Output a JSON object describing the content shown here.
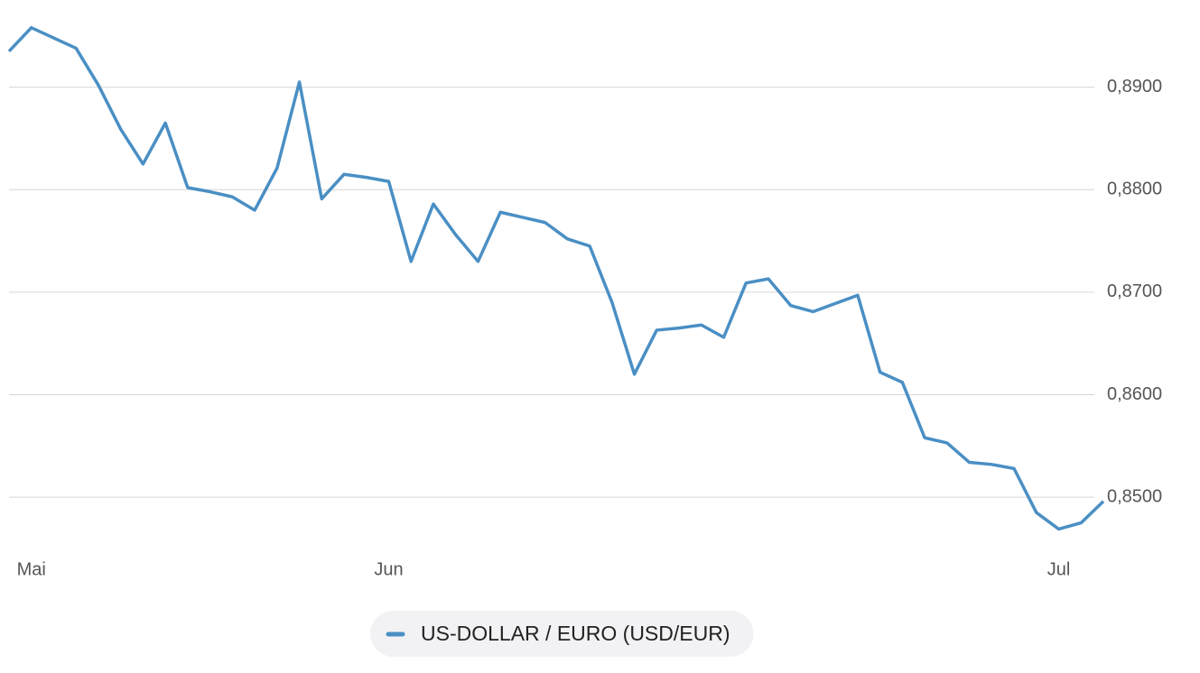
{
  "chart_data": {
    "type": "line",
    "categories": [
      null,
      "Mai",
      null,
      null,
      null,
      null,
      null,
      null,
      null,
      null,
      null,
      null,
      null,
      null,
      null,
      null,
      null,
      "Jun",
      null,
      null,
      null,
      null,
      null,
      null,
      null,
      null,
      null,
      null,
      null,
      null,
      null,
      null,
      null,
      null,
      null,
      null,
      null,
      null,
      null,
      null,
      null,
      null,
      null,
      null,
      null,
      null,
      null,
      "Jul",
      null,
      null
    ],
    "series": [
      {
        "name": "US-DOLLAR / EURO (USD/EUR)",
        "color": "#4a8fc4",
        "values": [
          0.8935,
          0.8958,
          0.8948,
          0.8938,
          0.8902,
          0.8859,
          0.8825,
          0.8865,
          0.8802,
          0.8798,
          0.8793,
          0.878,
          0.8821,
          0.8905,
          0.8791,
          0.8815,
          0.8812,
          0.8808,
          0.873,
          0.8786,
          0.8756,
          0.873,
          0.8778,
          0.8773,
          0.8768,
          0.8752,
          0.8745,
          0.869,
          0.862,
          0.8663,
          0.8665,
          0.8668,
          0.8656,
          0.8709,
          0.8713,
          0.8687,
          0.8681,
          0.8689,
          0.8697,
          0.8622,
          0.8612,
          0.8558,
          0.8553,
          0.8534,
          0.8532,
          0.8528,
          0.8485,
          0.8469,
          0.8475,
          0.8496
        ]
      }
    ],
    "ylim": [
      0.845,
      0.8985
    ],
    "yticks": [
      {
        "value": 0.85,
        "label": "0,8500"
      },
      {
        "value": 0.86,
        "label": "0,8600"
      },
      {
        "value": 0.87,
        "label": "0,8700"
      },
      {
        "value": 0.88,
        "label": "0,8800"
      },
      {
        "value": 0.89,
        "label": "0,8900"
      }
    ],
    "grid": true
  }
}
